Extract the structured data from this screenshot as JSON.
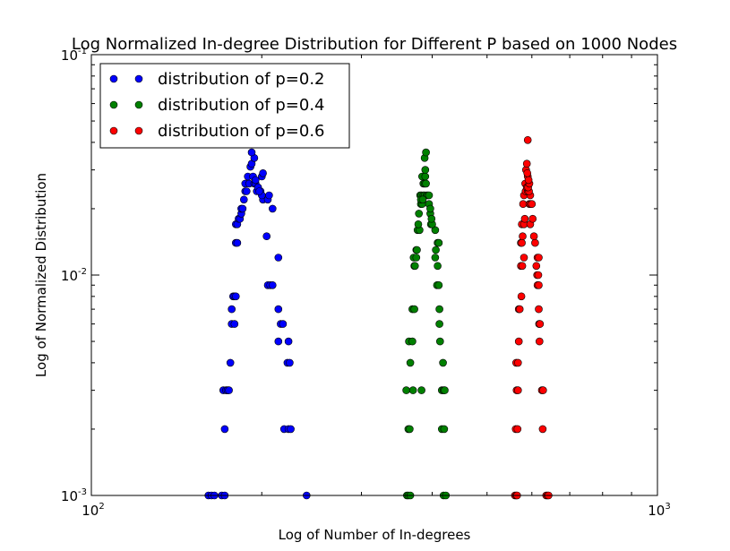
{
  "chart_data": {
    "type": "scatter",
    "title": "Log Normalized In-degree Distribution for Different P based on 1000 Nodes",
    "xlabel": "Log of Number of In-degrees",
    "ylabel": "Log of Normalized Distribution",
    "xscale": "log",
    "yscale": "log",
    "xlim": [
      100,
      1000
    ],
    "ylim": [
      0.001,
      0.1
    ],
    "x_ticks": [
      {
        "base": "10",
        "exp": "2"
      },
      {
        "base": "10",
        "exp": "3"
      }
    ],
    "y_ticks": [
      {
        "base": "10",
        "exp": "-3"
      },
      {
        "base": "10",
        "exp": "-2"
      },
      {
        "base": "10",
        "exp": "-1"
      }
    ],
    "grid": false,
    "legend_position": "top-left",
    "series": [
      {
        "name": "distribution of p=0.2",
        "color": "#0000ff",
        "points": [
          [
            161,
            0.001
          ],
          [
            163,
            0.001
          ],
          [
            165,
            0.001
          ],
          [
            170,
            0.001
          ],
          [
            172,
            0.001
          ],
          [
            240,
            0.001
          ],
          [
            172,
            0.002
          ],
          [
            219,
            0.002
          ],
          [
            223,
            0.002
          ],
          [
            225,
            0.002
          ],
          [
            171,
            0.003
          ],
          [
            173,
            0.003
          ],
          [
            174,
            0.003
          ],
          [
            175,
            0.003
          ],
          [
            176,
            0.004
          ],
          [
            222,
            0.004
          ],
          [
            224,
            0.004
          ],
          [
            214,
            0.005
          ],
          [
            223,
            0.005
          ],
          [
            177,
            0.006
          ],
          [
            179,
            0.006
          ],
          [
            216,
            0.006
          ],
          [
            218,
            0.006
          ],
          [
            177,
            0.007
          ],
          [
            214,
            0.007
          ],
          [
            178,
            0.008
          ],
          [
            179,
            0.008
          ],
          [
            180,
            0.008
          ],
          [
            205,
            0.009
          ],
          [
            207,
            0.009
          ],
          [
            209,
            0.009
          ],
          [
            214,
            0.012
          ],
          [
            204,
            0.015
          ],
          [
            180,
            0.014
          ],
          [
            181,
            0.014
          ],
          [
            180,
            0.017
          ],
          [
            181,
            0.017
          ],
          [
            182,
            0.018
          ],
          [
            183,
            0.018
          ],
          [
            184,
            0.019
          ],
          [
            184,
            0.02
          ],
          [
            185,
            0.02
          ],
          [
            209,
            0.02
          ],
          [
            186,
            0.022
          ],
          [
            201,
            0.022
          ],
          [
            205,
            0.022
          ],
          [
            206,
            0.023
          ],
          [
            187,
            0.024
          ],
          [
            188,
            0.024
          ],
          [
            196,
            0.024
          ],
          [
            199,
            0.024
          ],
          [
            200,
            0.023
          ],
          [
            187,
            0.026
          ],
          [
            190,
            0.026
          ],
          [
            194,
            0.026
          ],
          [
            195,
            0.026
          ],
          [
            197,
            0.025
          ],
          [
            198,
            0.024
          ],
          [
            189,
            0.028
          ],
          [
            193,
            0.028
          ],
          [
            195,
            0.027
          ],
          [
            200,
            0.028
          ],
          [
            201,
            0.029
          ],
          [
            191,
            0.031
          ],
          [
            192,
            0.032
          ],
          [
            194,
            0.034
          ],
          [
            192,
            0.036
          ]
        ]
      },
      {
        "name": "distribution of p=0.4",
        "color": "#008000",
        "points": [
          [
            361,
            0.001
          ],
          [
            363,
            0.001
          ],
          [
            366,
            0.001
          ],
          [
            419,
            0.001
          ],
          [
            423,
            0.001
          ],
          [
            363,
            0.002
          ],
          [
            365,
            0.002
          ],
          [
            416,
            0.002
          ],
          [
            420,
            0.002
          ],
          [
            360,
            0.003
          ],
          [
            370,
            0.003
          ],
          [
            383,
            0.003
          ],
          [
            416,
            0.003
          ],
          [
            419,
            0.003
          ],
          [
            421,
            0.003
          ],
          [
            366,
            0.004
          ],
          [
            418,
            0.004
          ],
          [
            364,
            0.005
          ],
          [
            369,
            0.005
          ],
          [
            413,
            0.005
          ],
          [
            412,
            0.006
          ],
          [
            369,
            0.007
          ],
          [
            372,
            0.007
          ],
          [
            412,
            0.007
          ],
          [
            408,
            0.009
          ],
          [
            411,
            0.009
          ],
          [
            372,
            0.011
          ],
          [
            373,
            0.011
          ],
          [
            409,
            0.011
          ],
          [
            371,
            0.012
          ],
          [
            375,
            0.012
          ],
          [
            405,
            0.012
          ],
          [
            375,
            0.013
          ],
          [
            376,
            0.013
          ],
          [
            406,
            0.013
          ],
          [
            409,
            0.014
          ],
          [
            411,
            0.014
          ],
          [
            377,
            0.016
          ],
          [
            380,
            0.016
          ],
          [
            405,
            0.016
          ],
          [
            378,
            0.017
          ],
          [
            398,
            0.017
          ],
          [
            400,
            0.017
          ],
          [
            379,
            0.019
          ],
          [
            397,
            0.019
          ],
          [
            399,
            0.018
          ],
          [
            382,
            0.021
          ],
          [
            384,
            0.021
          ],
          [
            395,
            0.021
          ],
          [
            397,
            0.02
          ],
          [
            381,
            0.023
          ],
          [
            383,
            0.023
          ],
          [
            386,
            0.023
          ],
          [
            388,
            0.023
          ],
          [
            391,
            0.023
          ],
          [
            393,
            0.023
          ],
          [
            395,
            0.023
          ],
          [
            382,
            0.022
          ],
          [
            385,
            0.022
          ],
          [
            386,
            0.026
          ],
          [
            388,
            0.026
          ],
          [
            390,
            0.026
          ],
          [
            384,
            0.028
          ],
          [
            389,
            0.028
          ],
          [
            389,
            0.03
          ],
          [
            388,
            0.034
          ],
          [
            390,
            0.036
          ]
        ]
      },
      {
        "name": "distribution of p=0.6",
        "color": "#ff0000",
        "points": [
          [
            560,
            0.001
          ],
          [
            563,
            0.001
          ],
          [
            565,
            0.001
          ],
          [
            636,
            0.001
          ],
          [
            639,
            0.001
          ],
          [
            642,
            0.001
          ],
          [
            562,
            0.002
          ],
          [
            566,
            0.002
          ],
          [
            627,
            0.002
          ],
          [
            564,
            0.003
          ],
          [
            567,
            0.003
          ],
          [
            625,
            0.003
          ],
          [
            628,
            0.003
          ],
          [
            563,
            0.004
          ],
          [
            567,
            0.004
          ],
          [
            569,
            0.005
          ],
          [
            619,
            0.005
          ],
          [
            618,
            0.006
          ],
          [
            620,
            0.006
          ],
          [
            569,
            0.007
          ],
          [
            571,
            0.007
          ],
          [
            617,
            0.007
          ],
          [
            614,
            0.009
          ],
          [
            617,
            0.009
          ],
          [
            575,
            0.008
          ],
          [
            613,
            0.01
          ],
          [
            616,
            0.01
          ],
          [
            574,
            0.011
          ],
          [
            577,
            0.011
          ],
          [
            611,
            0.011
          ],
          [
            581,
            0.012
          ],
          [
            614,
            0.012
          ],
          [
            617,
            0.012
          ],
          [
            574,
            0.014
          ],
          [
            576,
            0.014
          ],
          [
            608,
            0.014
          ],
          [
            578,
            0.015
          ],
          [
            605,
            0.015
          ],
          [
            576,
            0.017
          ],
          [
            581,
            0.017
          ],
          [
            596,
            0.017
          ],
          [
            583,
            0.018
          ],
          [
            602,
            0.018
          ],
          [
            579,
            0.021
          ],
          [
            594,
            0.021
          ],
          [
            597,
            0.021
          ],
          [
            600,
            0.021
          ],
          [
            581,
            0.023
          ],
          [
            596,
            0.023
          ],
          [
            585,
            0.024
          ],
          [
            590,
            0.024
          ],
          [
            593,
            0.024
          ],
          [
            584,
            0.026
          ],
          [
            588,
            0.025
          ],
          [
            591,
            0.025
          ],
          [
            594,
            0.026
          ],
          [
            590,
            0.028
          ],
          [
            592,
            0.027
          ],
          [
            586,
            0.03
          ],
          [
            589,
            0.029
          ],
          [
            588,
            0.032
          ],
          [
            590,
            0.041
          ]
        ]
      }
    ]
  }
}
